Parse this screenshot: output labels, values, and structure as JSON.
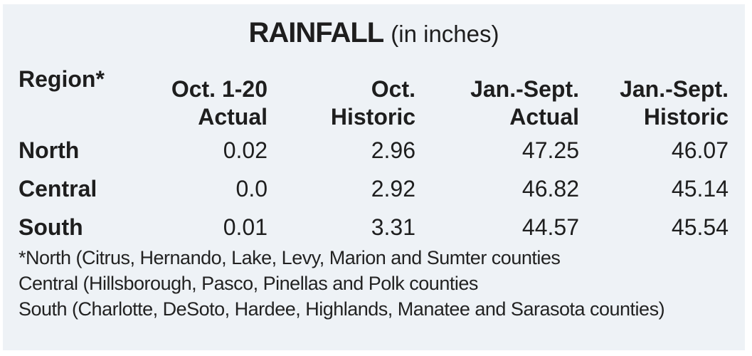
{
  "title": {
    "main": "RAINFALL",
    "sub": "(in inches)"
  },
  "table": {
    "headers": [
      {
        "line1": "Region*",
        "line2": ""
      },
      {
        "line1": "Oct. 1-20",
        "line2": "Actual"
      },
      {
        "line1": "Oct.",
        "line2": "Historic"
      },
      {
        "line1": "Jan.-Sept.",
        "line2": "Actual"
      },
      {
        "line1": "Jan.-Sept.",
        "line2": "Historic"
      }
    ],
    "rows": [
      {
        "region": "North",
        "oct_actual": "0.02",
        "oct_historic": "2.96",
        "jan_sept_actual": "47.25",
        "jan_sept_historic": "46.07"
      },
      {
        "region": "Central",
        "oct_actual": "0.0",
        "oct_historic": "2.92",
        "jan_sept_actual": "46.82",
        "jan_sept_historic": "45.14"
      },
      {
        "region": "South",
        "oct_actual": "0.01",
        "oct_historic": "3.31",
        "jan_sept_actual": "44.57",
        "jan_sept_historic": "45.54"
      }
    ]
  },
  "notes": [
    "*North (Citrus, Hernando, Lake, Levy, Marion and Sumter counties",
    "Central (Hillsborough, Pasco, Pinellas and Polk counties",
    "South (Charlotte, DeSoto, Hardee, Highlands, Manatee and Sarasota counties)"
  ],
  "colors": {
    "background": "#eef2f6",
    "text": "#1e1e1e"
  },
  "chart_data": {
    "type": "table",
    "title": "RAINFALL (in inches)",
    "columns": [
      "Region*",
      "Oct. 1-20 Actual",
      "Oct. Historic",
      "Jan.-Sept. Actual",
      "Jan.-Sept. Historic"
    ],
    "rows": [
      [
        "North",
        0.02,
        2.96,
        47.25,
        46.07
      ],
      [
        "Central",
        0.0,
        2.92,
        46.82,
        45.14
      ],
      [
        "South",
        0.01,
        3.31,
        44.57,
        45.54
      ]
    ],
    "footnotes": [
      "*North (Citrus, Hernando, Lake, Levy, Marion and Sumter counties",
      "Central (Hillsborough, Pasco, Pinellas and Polk counties",
      "South (Charlotte, DeSoto, Hardee, Highlands, Manatee and Sarasota counties)"
    ]
  }
}
